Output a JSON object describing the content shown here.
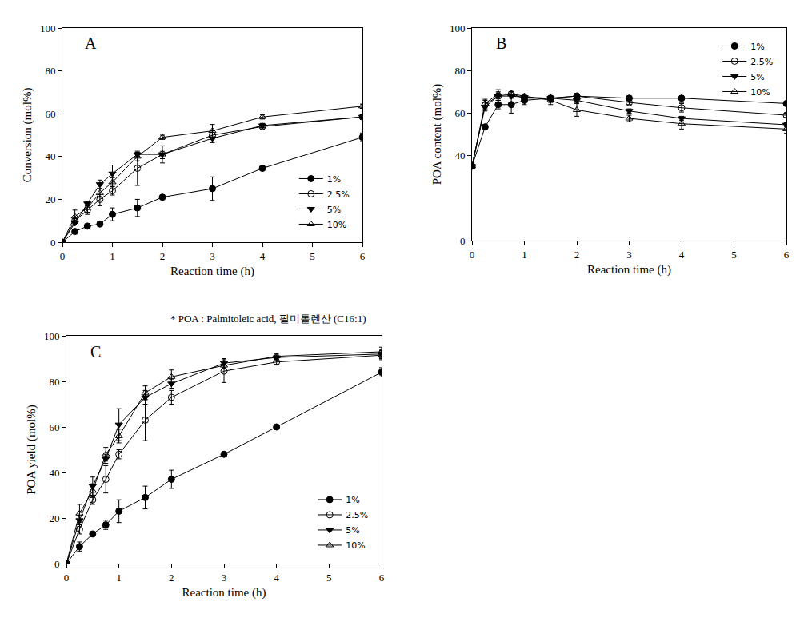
{
  "chart_data": [
    {
      "type": "line",
      "annotations": [
        "A"
      ],
      "x_label": "Reaction time (h)",
      "y_label": "Conversion (mol%)",
      "xlim": [
        0,
        6
      ],
      "xticks": [
        0,
        1,
        2,
        3,
        4,
        5,
        6
      ],
      "ylim": [
        0,
        100
      ],
      "yticks": [
        0,
        20,
        40,
        60,
        80,
        100
      ],
      "legend": "lower right",
      "x": [
        0,
        0.25,
        0.5,
        0.75,
        1,
        1.5,
        2,
        3,
        4,
        6
      ],
      "series": [
        {
          "name": "1%",
          "color": "#000000",
          "marker": "circle",
          "values": [
            0,
            5,
            7.5,
            8.5,
            13,
            16,
            21,
            25,
            34.5,
            49
          ],
          "error": [
            0,
            1,
            1,
            1,
            3,
            4,
            1,
            5.5,
            1,
            2
          ]
        },
        {
          "name": "2.5%",
          "color": "#000000",
          "marker": "circle-open",
          "values": [
            0,
            10,
            15,
            20,
            24,
            34.5,
            41,
            50,
            54,
            58.5
          ],
          "error": [
            0,
            1,
            2,
            3,
            2,
            8,
            2,
            2,
            1,
            1
          ]
        },
        {
          "name": "5%",
          "color": "#000000",
          "marker": "triangle-down",
          "values": [
            0,
            9,
            18,
            27,
            32,
            41,
            41,
            48.5,
            54.5,
            58.5
          ],
          "error": [
            0,
            1,
            1,
            2,
            4,
            1,
            4,
            2,
            1,
            1
          ]
        },
        {
          "name": "10%",
          "color": "#000000",
          "marker": "triangle-up-open",
          "values": [
            0,
            12,
            16,
            23,
            28,
            40,
            49,
            52,
            58.5,
            63.5
          ],
          "error": [
            0,
            3,
            2,
            2,
            2,
            2,
            1,
            3,
            1,
            1
          ]
        }
      ]
    },
    {
      "type": "line",
      "annotations": [
        "B"
      ],
      "x_label": "Reaction time (h)",
      "y_label": "POA content (mol%)",
      "xlim": [
        0,
        6
      ],
      "xticks": [
        0,
        1,
        2,
        3,
        4,
        5,
        6
      ],
      "ylim": [
        0,
        100
      ],
      "yticks": [
        0,
        40,
        60,
        80,
        100
      ],
      "legend": "upper right",
      "x": [
        0,
        0.25,
        0.5,
        0.75,
        1,
        1.5,
        2,
        3,
        4,
        6
      ],
      "series": [
        {
          "name": "1%",
          "color": "#000000",
          "marker": "circle",
          "values": [
            35,
            53.5,
            64,
            64,
            66,
            67,
            68,
            67,
            67,
            64.5
          ],
          "error": [
            0,
            1,
            2,
            4,
            2,
            2,
            1,
            1,
            2,
            1
          ]
        },
        {
          "name": "2.5%",
          "color": "#000000",
          "marker": "circle-open",
          "values": [
            35,
            64,
            68,
            69,
            67,
            67,
            68,
            65,
            62.5,
            59
          ],
          "error": [
            0,
            2,
            2,
            1,
            1,
            1,
            1,
            1,
            2,
            1
          ]
        },
        {
          "name": "5%",
          "color": "#000000",
          "marker": "triangle-down",
          "values": [
            35,
            63,
            68,
            68,
            67.5,
            67,
            66,
            61,
            57.5,
            54.5
          ],
          "error": [
            0,
            2,
            1,
            1,
            1,
            1,
            1,
            1,
            1,
            1
          ]
        },
        {
          "name": "10%",
          "color": "#000000",
          "marker": "triangle-up-open",
          "values": [
            35,
            64.5,
            69,
            69,
            68,
            66,
            61.5,
            57.5,
            55,
            52.5
          ],
          "error": [
            0,
            2,
            2,
            1,
            1,
            2,
            3,
            1.5,
            2.5,
            2
          ]
        }
      ]
    },
    {
      "type": "line",
      "annotations": [
        "C",
        "* POA : Palmitoleic acid, 팔미톨렌산 (C16:1)"
      ],
      "x_label": "Reaction time (h)",
      "y_label": "POA yield (mol%)",
      "xlim": [
        0,
        6
      ],
      "xticks": [
        0,
        1,
        2,
        3,
        4,
        5,
        6
      ],
      "ylim": [
        0,
        100
      ],
      "yticks": [
        0,
        20,
        40,
        60,
        80,
        100
      ],
      "legend": "lower right",
      "x": [
        0,
        0.25,
        0.5,
        0.75,
        1,
        1.5,
        2,
        3,
        4,
        6
      ],
      "series": [
        {
          "name": "1%",
          "color": "#000000",
          "marker": "circle",
          "values": [
            0,
            7.5,
            13,
            17,
            23,
            29,
            37,
            48,
            60,
            84
          ],
          "error": [
            0,
            2,
            1,
            2,
            5,
            5,
            4,
            1,
            1,
            2
          ]
        },
        {
          "name": "2.5%",
          "color": "#000000",
          "marker": "circle-open",
          "values": [
            0,
            15,
            28,
            37,
            48,
            63,
            73,
            84.5,
            88.5,
            91.5
          ],
          "error": [
            0,
            2,
            2,
            6,
            2,
            9,
            3,
            5,
            1,
            2
          ]
        },
        {
          "name": "5%",
          "color": "#000000",
          "marker": "triangle-down",
          "values": [
            0,
            19,
            34,
            46,
            61,
            73,
            79,
            88,
            90.5,
            92
          ],
          "error": [
            0,
            2,
            4,
            2,
            7,
            3,
            2,
            2,
            1,
            2
          ]
        },
        {
          "name": "10%",
          "color": "#000000",
          "marker": "triangle-up-open",
          "values": [
            0,
            22,
            32,
            48,
            56,
            75,
            82,
            87,
            91,
            93
          ],
          "error": [
            0,
            4,
            3,
            3,
            3,
            3,
            3,
            1,
            1,
            2
          ]
        }
      ]
    }
  ]
}
